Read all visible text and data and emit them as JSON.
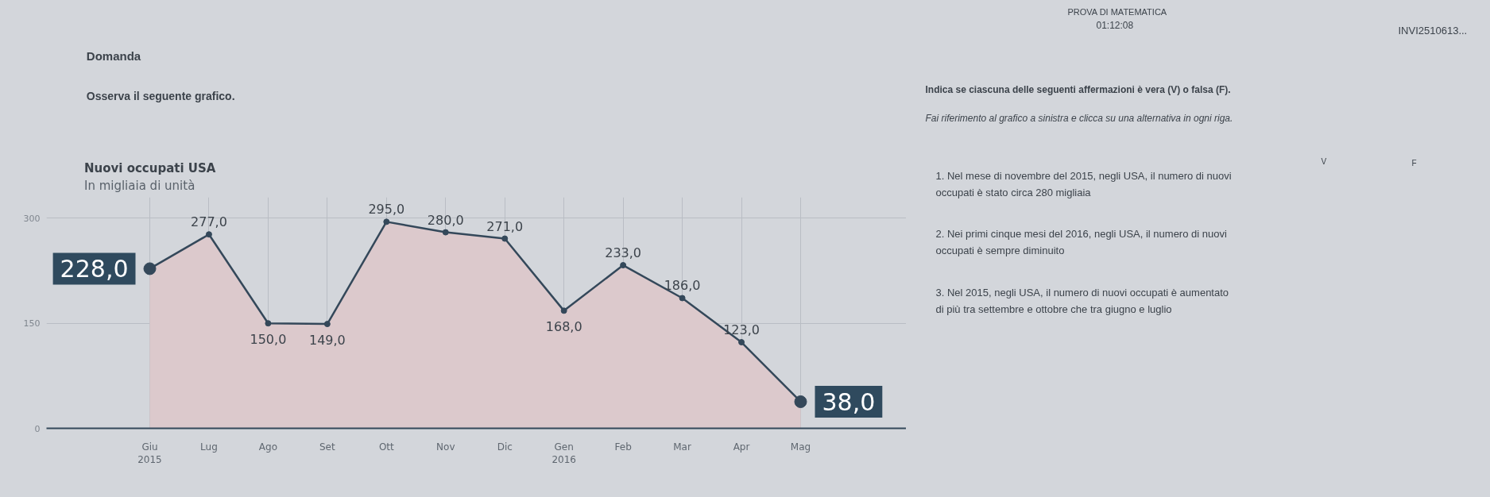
{
  "chart_data": {
    "type": "area",
    "title": "Nuovi occupati USA",
    "subtitle": "In migliaia di unità",
    "categories": [
      "Giu\n2015",
      "Lug",
      "Ago",
      "Set",
      "Ott",
      "Nov",
      "Dic",
      "Gen\n2016",
      "Feb",
      "Mar",
      "Apr",
      "Mag"
    ],
    "values": [
      228,
      277,
      150,
      149,
      295,
      280,
      271,
      168,
      233,
      186,
      123,
      38
    ],
    "value_labels": [
      "228,0",
      "277,0",
      "150,0",
      "149,0",
      "295,0",
      "280,0",
      "271,0",
      "168,0",
      "233,0",
      "186,0",
      "123,0",
      "38,0"
    ],
    "color": "#dcc9cc",
    "marker": "circle",
    "grid": true,
    "ylim": [
      0,
      330
    ],
    "yticks": [
      0,
      150,
      300
    ],
    "annotations": [
      "PROVA DI MATEMATICA",
      "01:12:08",
      "INVI2510613...",
      "Domanda",
      "Osserva il seguente grafico.",
      "Indica se ciascuna delle seguenti affermazioni è vera (V) o falsa (F).",
      "Fai riferimento al grafico a sinistra e clicca su una alternativa in ogni riga.",
      "V",
      "F",
      "1. Nel mese di novembre del 2015, negli USA, il numero di nuovi occupati è stato circa 280 migliaia",
      "2. Nei primi cinque mesi del 2016, negli USA, il numero di nuovi occupati è sempre diminuito",
      "3. Nel 2015, negli USA, il numero di nuovi occupati è aumentato di più tra settembre e ottobre che tra giugno e luglio"
    ]
  }
}
